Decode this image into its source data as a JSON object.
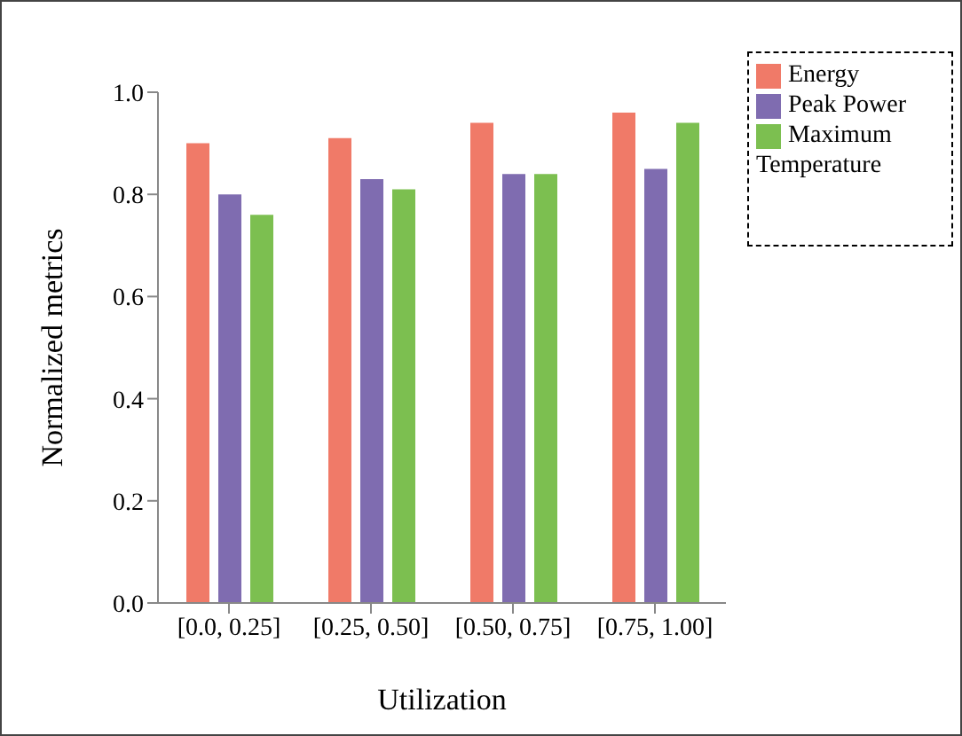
{
  "chart_data": {
    "type": "bar",
    "xlabel": "Utilization",
    "ylabel": "Normalized metrics",
    "categories": [
      "[0.0, 0.25]",
      "[0.25, 0.50]",
      "[0.50, 0.75]",
      "[0.75, 1.00]"
    ],
    "series": [
      {
        "name": "Energy",
        "color": "#f07a68",
        "values": [
          0.9,
          0.91,
          0.94,
          0.96
        ]
      },
      {
        "name": "Peak Power",
        "color": "#7f6cb0",
        "values": [
          0.8,
          0.83,
          0.84,
          0.85
        ]
      },
      {
        "name": "Maximum Temperature",
        "color": "#7cbf50",
        "values": [
          0.76,
          0.81,
          0.84,
          0.94
        ]
      }
    ],
    "ylim": [
      0,
      1.0
    ],
    "yticks": [
      {
        "value": 0,
        "label": "0.0"
      },
      0.2,
      0.4,
      0.6,
      0.8,
      {
        "value": 1,
        "label": "1.0"
      }
    ],
    "grid": false,
    "legend": "top right"
  }
}
